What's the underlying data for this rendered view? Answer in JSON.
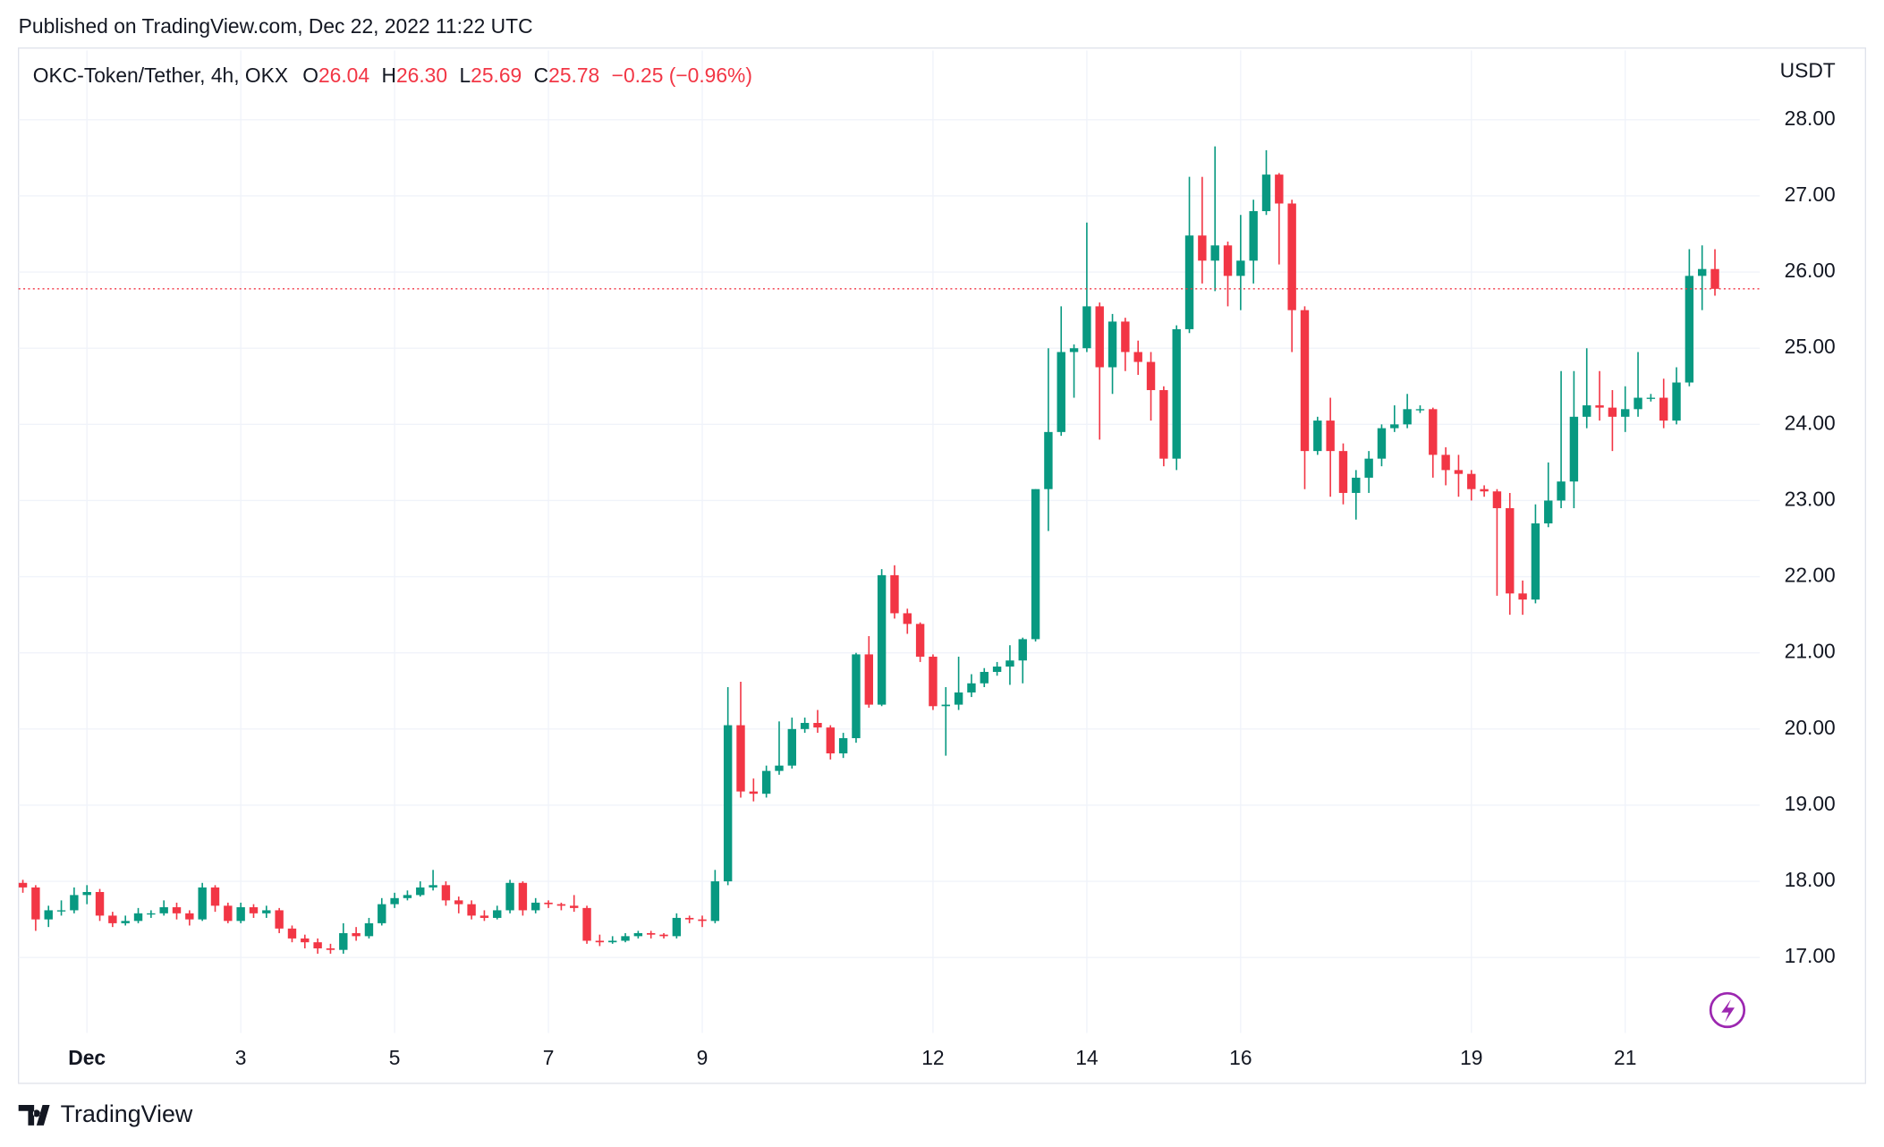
{
  "published": "Published on TradingView.com, Dec 22, 2022 11:22 UTC",
  "brand": "TradingView",
  "chart_data": {
    "type": "candlestick",
    "header": {
      "symbol": "OKC-Token/Tether, 4h, OKX",
      "items": [
        {
          "key": "O",
          "value": "26.04"
        },
        {
          "key": "H",
          "value": "26.30"
        },
        {
          "key": "L",
          "value": "25.69"
        },
        {
          "key": "C",
          "value": "25.78"
        }
      ],
      "change": "−0.25 (−0.96%)"
    },
    "y_axis_label": "USDT",
    "up_color": "#089981",
    "down_color": "#f23645",
    "grid": true,
    "xlim": [
      -0.34,
      135.5
    ],
    "xticks": [
      {
        "value": 5,
        "label": "Dec"
      },
      {
        "value": 17,
        "label": "3"
      },
      {
        "value": 29,
        "label": "5"
      },
      {
        "value": 41,
        "label": "7"
      },
      {
        "value": 53,
        "label": "9"
      },
      {
        "value": 71,
        "label": "12"
      },
      {
        "value": 83,
        "label": "14"
      },
      {
        "value": 95,
        "label": "16"
      },
      {
        "value": 113,
        "label": "19"
      },
      {
        "value": 125,
        "label": "21"
      }
    ],
    "ylim": [
      16.01,
      28.91
    ],
    "yticks": [
      {
        "value": 17,
        "label": "17.00"
      },
      {
        "value": 18,
        "label": "18.00"
      },
      {
        "value": 19,
        "label": "19.00"
      },
      {
        "value": 20,
        "label": "20.00"
      },
      {
        "value": 21,
        "label": "21.00"
      },
      {
        "value": 22,
        "label": "22.00"
      },
      {
        "value": 23,
        "label": "23.00"
      },
      {
        "value": 24,
        "label": "24.00"
      },
      {
        "value": 25,
        "label": "25.00"
      },
      {
        "value": 26,
        "label": "26.00"
      },
      {
        "value": 27,
        "label": "27.00"
      },
      {
        "value": 28,
        "label": "28.00"
      }
    ],
    "open": [
      17.98,
      17.92,
      17.5,
      17.62,
      17.62,
      17.82,
      17.86,
      17.55,
      17.45,
      17.48,
      17.58,
      17.58,
      17.66,
      17.58,
      17.5,
      17.92,
      17.68,
      17.48,
      17.66,
      17.58,
      17.62,
      17.38,
      17.25,
      17.2,
      17.12,
      17.1,
      17.32,
      17.28,
      17.45,
      17.7,
      17.78,
      17.82,
      17.92,
      17.95,
      17.75,
      17.7,
      17.55,
      17.52,
      17.62,
      17.98,
      17.62,
      17.72,
      17.7,
      17.68,
      17.65,
      17.22,
      17.2,
      17.22,
      17.28,
      17.32,
      17.3,
      17.28,
      17.52,
      17.5,
      17.48,
      18.0,
      20.05,
      19.18,
      19.15,
      19.45,
      19.52,
      20.0,
      20.08,
      20.02,
      19.68,
      19.88,
      20.98,
      20.32,
      22.02,
      21.52,
      21.38,
      20.95,
      20.3,
      20.32,
      20.48,
      20.6,
      20.75,
      20.82,
      20.9,
      21.18,
      23.15,
      23.9,
      24.95,
      25.0,
      25.55,
      24.75,
      25.35,
      24.95,
      24.82,
      24.45,
      23.55,
      25.25,
      26.48,
      26.15,
      26.35,
      25.95,
      26.15,
      26.8,
      27.28,
      26.9,
      25.5,
      23.65,
      24.05,
      23.65,
      23.1,
      23.3,
      23.55,
      23.95,
      24.0,
      24.2,
      24.2,
      23.6,
      23.4,
      23.35,
      23.15,
      23.12,
      22.9,
      21.78,
      21.7,
      22.7,
      23.0,
      23.25,
      24.1,
      24.25,
      24.22,
      24.1,
      24.2,
      24.35,
      24.35,
      24.05,
      24.55,
      25.95,
      26.04
    ],
    "high": [
      18.02,
      17.95,
      17.68,
      17.75,
      17.92,
      17.95,
      17.9,
      17.6,
      17.55,
      17.65,
      17.62,
      17.75,
      17.72,
      17.62,
      17.98,
      17.95,
      17.72,
      17.72,
      17.7,
      17.68,
      17.65,
      17.42,
      17.3,
      17.25,
      17.18,
      17.45,
      17.4,
      17.52,
      17.78,
      17.85,
      17.88,
      18.0,
      18.15,
      18.0,
      17.8,
      17.75,
      17.62,
      17.68,
      18.02,
      18.0,
      17.78,
      17.75,
      17.72,
      17.82,
      17.68,
      17.3,
      17.28,
      17.32,
      17.35,
      17.35,
      17.32,
      17.58,
      17.55,
      17.55,
      18.15,
      20.55,
      20.62,
      19.35,
      19.52,
      20.1,
      20.15,
      20.15,
      20.25,
      20.05,
      19.95,
      21.0,
      21.22,
      22.1,
      22.15,
      21.58,
      21.4,
      20.98,
      20.55,
      20.95,
      20.72,
      20.8,
      20.88,
      21.1,
      21.2,
      23.15,
      25.0,
      25.55,
      25.05,
      26.65,
      25.6,
      25.45,
      25.4,
      25.1,
      24.95,
      24.5,
      25.3,
      27.25,
      27.25,
      27.65,
      26.4,
      26.75,
      26.95,
      27.6,
      27.3,
      26.95,
      25.55,
      24.1,
      24.35,
      23.75,
      23.4,
      23.65,
      24.0,
      24.25,
      24.4,
      24.25,
      24.22,
      23.7,
      23.6,
      23.4,
      23.2,
      23.15,
      23.1,
      21.95,
      22.95,
      23.5,
      24.7,
      24.7,
      25.0,
      24.7,
      24.45,
      24.5,
      24.95,
      24.4,
      24.6,
      24.75,
      26.3,
      26.35,
      26.3
    ],
    "low": [
      17.85,
      17.35,
      17.4,
      17.55,
      17.58,
      17.7,
      17.48,
      17.4,
      17.42,
      17.45,
      17.52,
      17.55,
      17.5,
      17.42,
      17.48,
      17.6,
      17.45,
      17.45,
      17.52,
      17.52,
      17.32,
      17.2,
      17.12,
      17.05,
      17.05,
      17.05,
      17.22,
      17.25,
      17.42,
      17.65,
      17.75,
      17.8,
      17.88,
      17.68,
      17.58,
      17.5,
      17.48,
      17.5,
      17.58,
      17.55,
      17.58,
      17.65,
      17.62,
      17.6,
      17.18,
      17.15,
      17.18,
      17.2,
      17.25,
      17.25,
      17.25,
      17.25,
      17.45,
      17.4,
      17.45,
      17.95,
      19.1,
      19.05,
      19.1,
      19.4,
      19.48,
      19.95,
      19.95,
      19.6,
      19.62,
      19.82,
      20.28,
      20.3,
      21.45,
      21.25,
      20.88,
      20.25,
      19.65,
      20.25,
      20.42,
      20.55,
      20.7,
      20.58,
      20.6,
      21.15,
      22.6,
      23.85,
      24.35,
      24.95,
      23.8,
      24.4,
      24.7,
      24.65,
      24.05,
      23.45,
      23.4,
      25.2,
      25.85,
      25.75,
      25.55,
      25.5,
      25.85,
      26.75,
      26.1,
      24.95,
      23.15,
      23.6,
      23.05,
      22.95,
      22.75,
      23.1,
      23.45,
      23.9,
      23.95,
      24.15,
      23.3,
      23.2,
      23.05,
      23.0,
      23.05,
      21.75,
      21.5,
      21.5,
      21.65,
      22.65,
      22.9,
      22.9,
      23.95,
      24.05,
      23.65,
      23.9,
      24.1,
      24.3,
      23.95,
      24.0,
      24.5,
      25.5,
      25.69
    ],
    "close": [
      17.92,
      17.5,
      17.62,
      17.62,
      17.82,
      17.86,
      17.55,
      17.45,
      17.48,
      17.58,
      17.58,
      17.66,
      17.58,
      17.5,
      17.92,
      17.68,
      17.48,
      17.66,
      17.58,
      17.62,
      17.38,
      17.25,
      17.2,
      17.12,
      17.1,
      17.32,
      17.28,
      17.45,
      17.7,
      17.78,
      17.82,
      17.92,
      17.95,
      17.75,
      17.7,
      17.55,
      17.52,
      17.62,
      17.98,
      17.62,
      17.72,
      17.7,
      17.68,
      17.65,
      17.22,
      17.2,
      17.22,
      17.28,
      17.32,
      17.3,
      17.28,
      17.52,
      17.5,
      17.48,
      18.0,
      20.05,
      19.18,
      19.15,
      19.45,
      19.52,
      20.0,
      20.08,
      20.02,
      19.68,
      19.88,
      20.98,
      20.32,
      22.02,
      21.52,
      21.38,
      20.95,
      20.3,
      20.32,
      20.48,
      20.6,
      20.75,
      20.82,
      20.9,
      21.18,
      23.15,
      23.9,
      24.95,
      25.0,
      25.55,
      24.75,
      25.35,
      24.95,
      24.82,
      24.45,
      23.55,
      25.25,
      26.48,
      26.15,
      26.35,
      25.95,
      26.15,
      26.8,
      27.28,
      26.9,
      25.5,
      23.65,
      24.05,
      23.65,
      23.1,
      23.3,
      23.55,
      23.95,
      24.0,
      24.2,
      24.2,
      23.6,
      23.4,
      23.35,
      23.15,
      23.12,
      22.9,
      21.78,
      21.7,
      22.7,
      23.0,
      23.25,
      24.1,
      24.25,
      24.22,
      24.1,
      24.2,
      24.35,
      24.35,
      24.05,
      24.55,
      25.95,
      26.04,
      25.78
    ]
  }
}
